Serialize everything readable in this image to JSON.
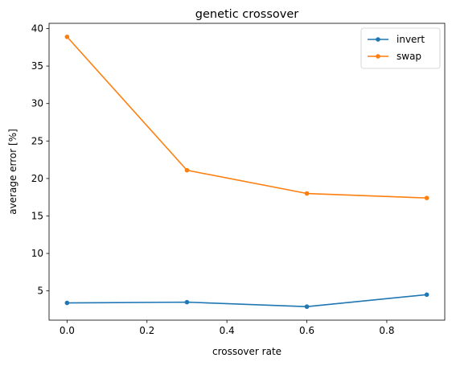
{
  "chart_data": {
    "type": "line",
    "title": "genetic crossover",
    "xlabel": "crossover rate",
    "ylabel": "average error [%]",
    "x": [
      0.0,
      0.3,
      0.6,
      0.9
    ],
    "series": [
      {
        "name": "invert",
        "color": "#1f77b4",
        "values": [
          3.4,
          3.5,
          2.9,
          4.5
        ]
      },
      {
        "name": "swap",
        "color": "#ff7f0e",
        "values": [
          38.9,
          21.1,
          18.0,
          17.4
        ]
      }
    ],
    "xlim": [
      -0.045,
      0.945
    ],
    "ylim": [
      1.1,
      40.7
    ],
    "xticks": [
      0.0,
      0.2,
      0.4,
      0.6,
      0.8
    ],
    "xtick_labels": [
      "0.0",
      "0.2",
      "0.4",
      "0.6",
      "0.8"
    ],
    "yticks": [
      5,
      10,
      15,
      20,
      25,
      30,
      35,
      40
    ],
    "ytick_labels": [
      "5",
      "10",
      "15",
      "20",
      "25",
      "30",
      "35",
      "40"
    ],
    "grid": false,
    "legend_position": "top-right",
    "marker": "circle"
  }
}
